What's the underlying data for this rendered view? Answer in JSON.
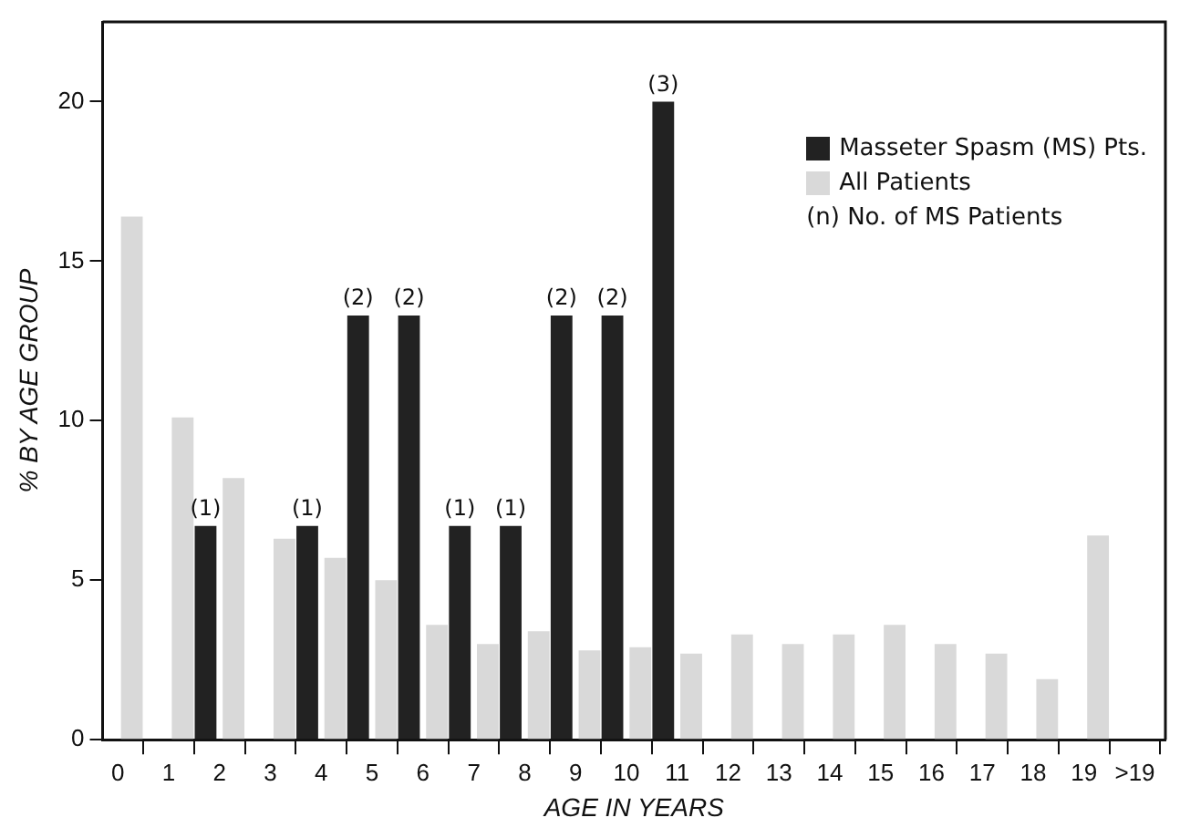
{
  "chart_data": {
    "type": "bar",
    "xlabel": "AGE IN YEARS",
    "ylabel": "% BY AGE GROUP",
    "x": [
      0.5,
      1.5,
      2.5,
      3.5,
      4.5,
      5.5,
      6.5,
      7.5,
      8.5,
      9.5,
      10.5,
      11.5,
      12.5,
      13.5,
      14.5,
      15.5,
      16.5,
      17.5,
      18.5,
      19.5
    ],
    "series": [
      {
        "name": "All Patients",
        "color": "#d9d9d9",
        "values": [
          16.4,
          10.1,
          8.2,
          6.3,
          5.7,
          5.0,
          3.6,
          3.0,
          3.4,
          2.8,
          2.9,
          2.7,
          3.3,
          3.0,
          3.3,
          3.6,
          3.0,
          2.7,
          1.9,
          6.4
        ]
      },
      {
        "name": "Masseter Spasm (MS) Pts.",
        "color": "#222222",
        "values": [
          null,
          6.7,
          null,
          6.7,
          13.3,
          13.3,
          6.7,
          6.7,
          13.3,
          13.3,
          20.0,
          null,
          null,
          null,
          null,
          null,
          null,
          null,
          null,
          null
        ]
      }
    ],
    "xlim": [
      -0.3,
      20.6
    ],
    "xticks": [
      0,
      1,
      2,
      3,
      4,
      5,
      6,
      7,
      8,
      9,
      10,
      11,
      12,
      13,
      14,
      15,
      16,
      17,
      18,
      19,
      {
        "value": 20,
        "label": ">19"
      }
    ],
    "ylim": [
      0,
      22.5
    ],
    "yticks": [
      0,
      5,
      10,
      15,
      20
    ],
    "annotations": [
      "(n) No. of MS Patients",
      {
        "text": "(1)",
        "x": 1.5,
        "y": 6.7
      },
      {
        "text": "(1)",
        "x": 3.5,
        "y": 6.7
      },
      {
        "text": "(2)",
        "x": 4.5,
        "y": 13.3
      },
      {
        "text": "(2)",
        "x": 5.5,
        "y": 13.3
      },
      {
        "text": "(1)",
        "x": 6.5,
        "y": 6.7
      },
      {
        "text": "(1)",
        "x": 7.5,
        "y": 6.7
      },
      {
        "text": "(2)",
        "x": 8.5,
        "y": 13.3
      },
      {
        "text": "(2)",
        "x": 9.5,
        "y": 13.3
      },
      {
        "text": "(3)",
        "x": 10.5,
        "y": 20.0
      }
    ],
    "grid": false,
    "legend": "top right"
  }
}
